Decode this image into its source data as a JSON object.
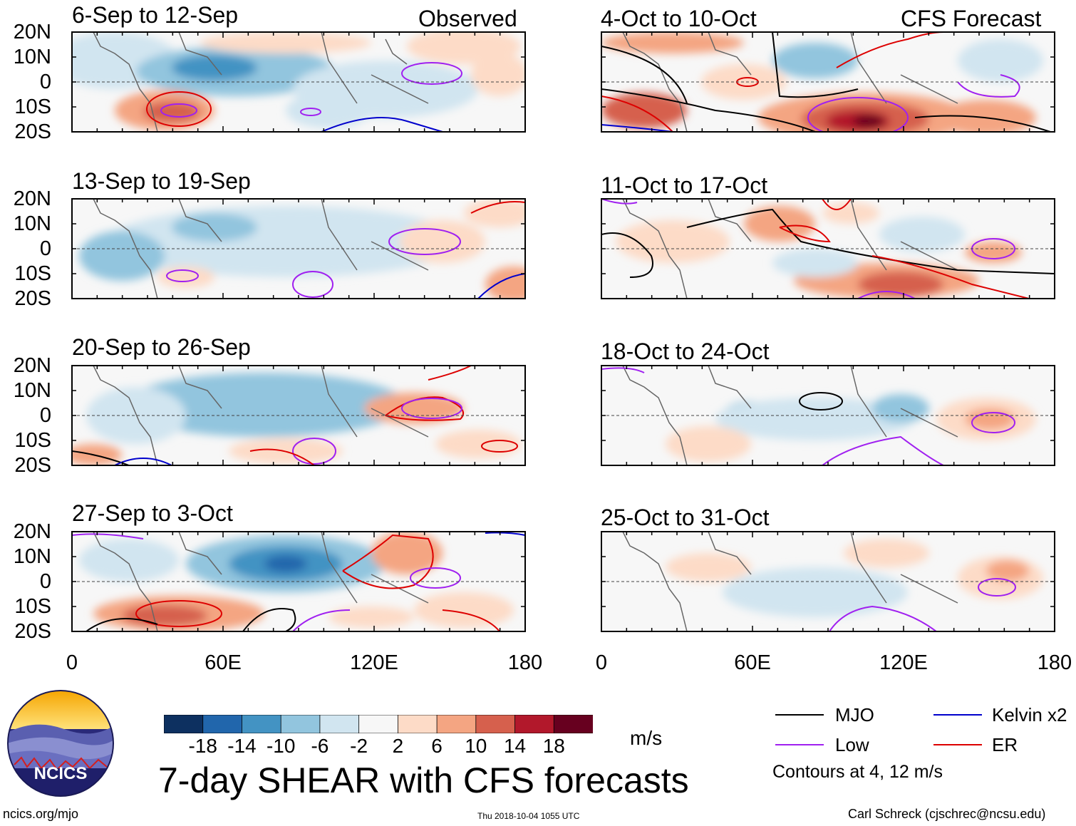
{
  "header": {
    "left_label": "Observed",
    "right_label": "CFS Forecast"
  },
  "observed_panels": [
    {
      "title": "6-Sep to 12-Sep"
    },
    {
      "title": "13-Sep to 19-Sep"
    },
    {
      "title": "20-Sep to 26-Sep"
    },
    {
      "title": "27-Sep to 3-Oct"
    }
  ],
  "forecast_panels": [
    {
      "title": "4-Oct to 10-Oct"
    },
    {
      "title": "11-Oct to 17-Oct"
    },
    {
      "title": "18-Oct to 24-Oct"
    },
    {
      "title": "25-Oct to 31-Oct"
    }
  ],
  "axes": {
    "lat_labels": [
      "20N",
      "10N",
      "0",
      "10S",
      "20S"
    ],
    "lon_labels": [
      "0",
      "60E",
      "120E",
      "180"
    ]
  },
  "colorbar": {
    "labels": [
      "-18",
      "-14",
      "-10",
      "-6",
      "-2",
      "2",
      "6",
      "10",
      "14",
      "18"
    ],
    "colors": [
      "#0d3060",
      "#2166ac",
      "#4393c3",
      "#92c5de",
      "#d1e5f0",
      "#f7f7f7",
      "#fddbc7",
      "#f4a582",
      "#d6604d",
      "#b2182b",
      "#67001f"
    ],
    "unit": "m/s"
  },
  "legend": {
    "items": [
      {
        "label": "MJO",
        "color": "#000000"
      },
      {
        "label": "Kelvin x2",
        "color": "#0000cc"
      },
      {
        "label": "Low",
        "color": "#a020f0"
      },
      {
        "label": "ER",
        "color": "#dd0000"
      }
    ],
    "note": "Contours at 4, 12 m/s"
  },
  "footer": {
    "title": "7-day SHEAR with CFS forecasts",
    "site": "ncics.org/mjo",
    "timestamp": "Thu 2018-10-04 1055 UTC",
    "author": "Carl Schreck (cjschrec@ncsu.edu)"
  },
  "logo": {
    "text": "NCICS"
  }
}
